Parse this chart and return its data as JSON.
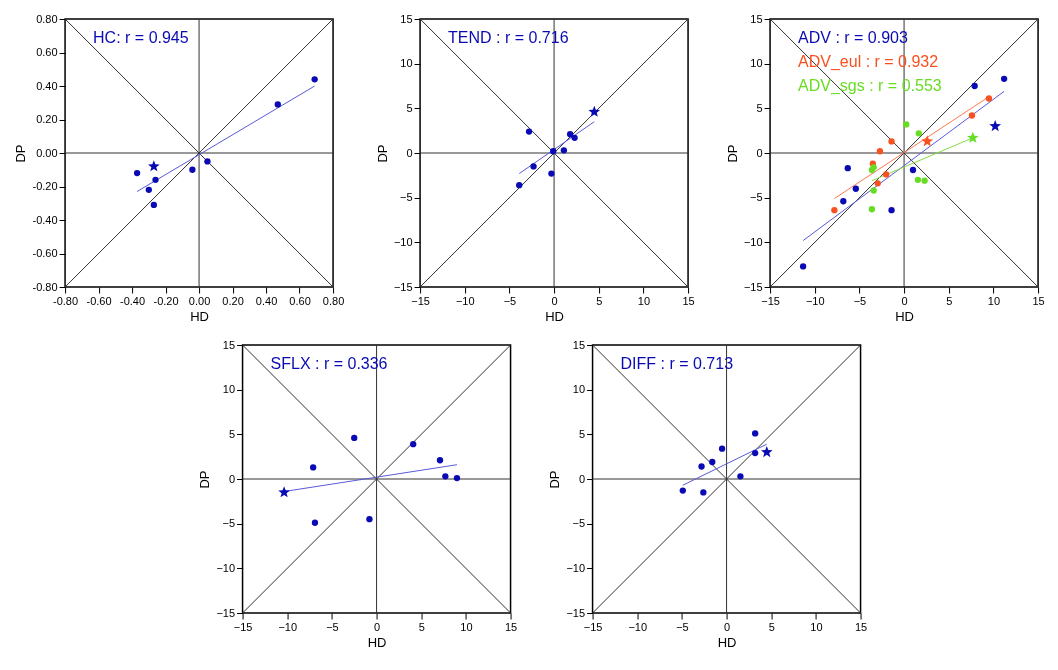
{
  "chart_data": [
    {
      "type": "scatter",
      "xlabel": "HD",
      "ylabel": "DP",
      "xlim": [
        -0.8,
        0.8
      ],
      "ylim": [
        -0.8,
        0.8
      ],
      "xticks": [
        {
          "value": -0.8,
          "label": "-0.80"
        },
        {
          "value": -0.6,
          "label": "-0.60"
        },
        {
          "value": -0.4,
          "label": "-0.40"
        },
        {
          "value": -0.2,
          "label": "-0.20"
        },
        {
          "value": 0,
          "label": "0.00"
        },
        {
          "value": 0.2,
          "label": "0.20"
        },
        {
          "value": 0.4,
          "label": "0.40"
        },
        {
          "value": 0.6,
          "label": "0.60"
        },
        {
          "value": 0.8,
          "label": "0.80"
        }
      ],
      "yticks": [
        {
          "value": -0.8,
          "label": "-0.80"
        },
        {
          "value": -0.6,
          "label": "-0.60"
        },
        {
          "value": -0.4,
          "label": "-0.40"
        },
        {
          "value": -0.2,
          "label": "-0.20"
        },
        {
          "value": 0,
          "label": "0.00"
        },
        {
          "value": 0.2,
          "label": "0.20"
        },
        {
          "value": 0.4,
          "label": "0.40"
        },
        {
          "value": 0.6,
          "label": "0.60"
        },
        {
          "value": 0.8,
          "label": "0.80"
        }
      ],
      "series": [
        {
          "type": "line",
          "color": "#333333",
          "x": [
            -0.8,
            0.8
          ],
          "values": [
            -0.8,
            0.8
          ]
        },
        {
          "type": "line",
          "color": "#333333",
          "x": [
            -0.8,
            0.8
          ],
          "values": [
            0.8,
            -0.8
          ]
        },
        {
          "type": "line",
          "color": "#333333",
          "x": [
            -0.8,
            0.8
          ],
          "values": [
            0,
            0
          ]
        },
        {
          "type": "line",
          "color": "#333333",
          "x": [
            0,
            0
          ],
          "values": [
            -0.8,
            0.8
          ]
        },
        {
          "type": "line",
          "color": "#5a5adc",
          "x": [
            -0.37,
            0.69
          ],
          "values": [
            -0.23,
            0.4
          ]
        },
        {
          "type": "scatter",
          "marker": "circle",
          "name": "HC: r = 0.945",
          "color": "#0a0ab4",
          "x": [
            -0.37,
            -0.3,
            -0.26,
            -0.27,
            -0.04,
            0.05,
            0.47,
            0.69
          ],
          "values": [
            -0.12,
            -0.22,
            -0.16,
            -0.31,
            -0.1,
            -0.05,
            0.29,
            0.44
          ]
        },
        {
          "type": "scatter",
          "marker": "star",
          "color": "#0a0ab4",
          "x": [
            -0.27
          ],
          "values": [
            -0.08
          ]
        }
      ]
    },
    {
      "type": "scatter",
      "xlabel": "HD",
      "ylabel": "DP",
      "xlim": [
        -15,
        15
      ],
      "ylim": [
        -15,
        15
      ],
      "xticks": [
        -15,
        -10,
        -5,
        0,
        5,
        10,
        15
      ],
      "yticks": [
        -15,
        -10,
        -5,
        0,
        5,
        10,
        15
      ],
      "series": [
        {
          "type": "line",
          "color": "#333333",
          "x": [
            -15,
            15
          ],
          "values": [
            -15,
            15
          ]
        },
        {
          "type": "line",
          "color": "#333333",
          "x": [
            -15,
            15
          ],
          "values": [
            15,
            -15
          ]
        },
        {
          "type": "line",
          "color": "#333333",
          "x": [
            -15,
            15
          ],
          "values": [
            0,
            0
          ]
        },
        {
          "type": "line",
          "color": "#333333",
          "x": [
            0,
            0
          ],
          "values": [
            -15,
            15
          ]
        },
        {
          "type": "line",
          "color": "#5a5adc",
          "x": [
            -3.9,
            4.5
          ],
          "values": [
            -2.3,
            3.5
          ]
        },
        {
          "type": "scatter",
          "marker": "circle",
          "name": "TEND : r = 0.716",
          "color": "#0a0ab4",
          "x": [
            -2.8,
            -2.3,
            -3.9,
            -0.3,
            -0.1,
            1.1,
            1.8,
            2.3
          ],
          "values": [
            2.4,
            -1.5,
            -3.6,
            -2.3,
            0.2,
            0.3,
            2.1,
            1.7
          ]
        },
        {
          "type": "scatter",
          "marker": "star",
          "color": "#0a0ab4",
          "x": [
            4.5
          ],
          "values": [
            4.6
          ]
        }
      ]
    },
    {
      "type": "scatter",
      "xlabel": "HD",
      "ylabel": "DP",
      "xlim": [
        -15,
        15
      ],
      "ylim": [
        -15,
        15
      ],
      "xticks": [
        -15,
        -10,
        -5,
        0,
        5,
        10,
        15
      ],
      "yticks": [
        -15,
        -10,
        -5,
        0,
        5,
        10,
        15
      ],
      "series": [
        {
          "type": "line",
          "color": "#333333",
          "x": [
            -15,
            15
          ],
          "values": [
            -15,
            15
          ]
        },
        {
          "type": "line",
          "color": "#333333",
          "x": [
            -15,
            15
          ],
          "values": [
            15,
            -15
          ]
        },
        {
          "type": "line",
          "color": "#333333",
          "x": [
            -15,
            15
          ],
          "values": [
            0,
            0
          ]
        },
        {
          "type": "line",
          "color": "#333333",
          "x": [
            0,
            0
          ],
          "values": [
            -15,
            15
          ]
        },
        {
          "type": "line",
          "color": "#5a5adc",
          "x": [
            -11.3,
            11.2
          ],
          "values": [
            -9.8,
            6.9
          ]
        },
        {
          "type": "line",
          "color": "#ff7a50",
          "x": [
            -7.8,
            9.5
          ],
          "values": [
            -5.1,
            6.3
          ]
        },
        {
          "type": "line",
          "color": "#88dd44",
          "x": [
            -3.6,
            7.7
          ],
          "values": [
            -3.1,
            1.7
          ]
        },
        {
          "type": "scatter",
          "marker": "circle",
          "name": "ADV : r = 0.903",
          "color": "#0a0ab4",
          "x": [
            11.2,
            7.9,
            -6.3,
            -5.4,
            -6.8,
            -1.4,
            1.0,
            -11.3
          ],
          "values": [
            8.3,
            7.5,
            -1.7,
            -4.0,
            -5.4,
            -6.4,
            -1.9,
            -12.7
          ]
        },
        {
          "type": "scatter",
          "marker": "circle",
          "name": "ADV_eul : r = 0.932",
          "color": "#f8501e",
          "x": [
            9.5,
            7.6,
            -1.4,
            -2.7,
            -3.5,
            -2.95,
            -2.0,
            -7.8
          ],
          "values": [
            6.1,
            4.2,
            1.3,
            0.2,
            -1.2,
            -3.4,
            -2.4,
            -6.4
          ]
        },
        {
          "type": "scatter",
          "marker": "circle",
          "name": "ADV_sgs : r = 0.553",
          "color": "#66dd22",
          "x": [
            0.25,
            1.65,
            -3.6,
            -3.4,
            -3.4,
            -3.6,
            1.55,
            2.3
          ],
          "values": [
            3.2,
            2.2,
            -1.9,
            -1.6,
            -4.2,
            -6.3,
            -3.0,
            -3.1
          ]
        },
        {
          "type": "scatter",
          "marker": "star",
          "color": "#0a0ab4",
          "x": [
            10.2
          ],
          "values": [
            3.0
          ]
        },
        {
          "type": "scatter",
          "marker": "star",
          "color": "#f8501e",
          "x": [
            2.6
          ],
          "values": [
            1.3
          ]
        },
        {
          "type": "scatter",
          "marker": "star",
          "color": "#66dd22",
          "x": [
            7.7
          ],
          "values": [
            1.7
          ]
        }
      ]
    },
    {
      "type": "scatter",
      "xlabel": "HD",
      "ylabel": "DP",
      "xlim": [
        -15,
        15
      ],
      "ylim": [
        -15,
        15
      ],
      "xticks": [
        -15,
        -10,
        -5,
        0,
        5,
        10,
        15
      ],
      "yticks": [
        -15,
        -10,
        -5,
        0,
        5,
        10,
        15
      ],
      "series": [
        {
          "type": "line",
          "color": "#333333",
          "x": [
            -15,
            15
          ],
          "values": [
            -15,
            15
          ]
        },
        {
          "type": "line",
          "color": "#333333",
          "x": [
            -15,
            15
          ],
          "values": [
            15,
            -15
          ]
        },
        {
          "type": "line",
          "color": "#333333",
          "x": [
            -15,
            15
          ],
          "values": [
            0,
            0
          ]
        },
        {
          "type": "line",
          "color": "#333333",
          "x": [
            0,
            0
          ],
          "values": [
            -15,
            15
          ]
        },
        {
          "type": "line",
          "color": "#5a5adc",
          "x": [
            -10.35,
            9.0
          ],
          "values": [
            -1.4,
            1.6
          ]
        },
        {
          "type": "scatter",
          "marker": "circle",
          "name": "SFLX : r = 0.336",
          "color": "#0a0ab4",
          "x": [
            -2.5,
            4.1,
            -7.1,
            7.1,
            7.7,
            9.0,
            -6.9,
            -0.8
          ],
          "values": [
            4.6,
            3.9,
            1.3,
            2.1,
            0.3,
            0.1,
            -4.9,
            -4.5
          ]
        },
        {
          "type": "scatter",
          "marker": "star",
          "color": "#0a0ab4",
          "x": [
            -10.35
          ],
          "values": [
            -1.5
          ]
        }
      ]
    },
    {
      "type": "scatter",
      "xlabel": "HD",
      "ylabel": "DP",
      "xlim": [
        -15,
        15
      ],
      "ylim": [
        -15,
        15
      ],
      "xticks": [
        -15,
        -10,
        -5,
        0,
        5,
        10,
        15
      ],
      "yticks": [
        -15,
        -10,
        -5,
        0,
        5,
        10,
        15
      ],
      "series": [
        {
          "type": "line",
          "color": "#333333",
          "x": [
            -15,
            15
          ],
          "values": [
            -15,
            15
          ]
        },
        {
          "type": "line",
          "color": "#333333",
          "x": [
            -15,
            15
          ],
          "values": [
            15,
            -15
          ]
        },
        {
          "type": "line",
          "color": "#333333",
          "x": [
            -15,
            15
          ],
          "values": [
            0,
            0
          ]
        },
        {
          "type": "line",
          "color": "#333333",
          "x": [
            0,
            0
          ],
          "values": [
            -15,
            15
          ]
        },
        {
          "type": "line",
          "color": "#5a5adc",
          "x": [
            -4.9,
            4.5
          ],
          "values": [
            -0.7,
            3.9
          ]
        },
        {
          "type": "scatter",
          "marker": "circle",
          "name": "DIFF : r = 0.713",
          "color": "#0a0ab4",
          "x": [
            3.2,
            -0.5,
            -1.6,
            -2.8,
            3.2,
            1.55,
            -2.6,
            -4.9
          ],
          "values": [
            5.1,
            3.4,
            1.9,
            1.4,
            2.9,
            0.3,
            -1.5,
            -1.3
          ]
        },
        {
          "type": "scatter",
          "marker": "star",
          "color": "#0a0ab4",
          "x": [
            4.5
          ],
          "values": [
            3.0
          ]
        }
      ]
    }
  ]
}
